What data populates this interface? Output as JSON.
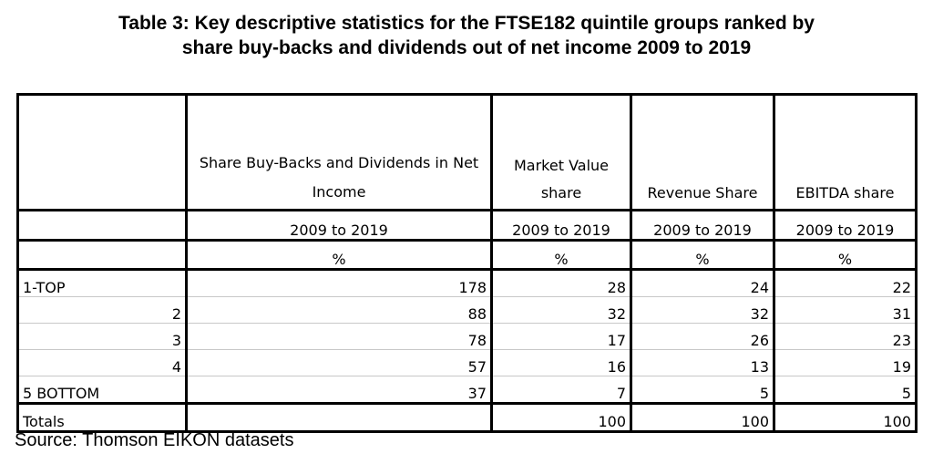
{
  "title": {
    "line1": "Table 3: Key descriptive statistics for the FTSE182 quintile groups ranked by",
    "line2": "share buy-backs and dividends out of net income 2009 to 2019"
  },
  "table": {
    "headers": {
      "col1": "Share Buy-Backs and Dividends in Net Income",
      "col2": "Market Value share",
      "col3": "Revenue Share",
      "col4": "EBITDA share"
    },
    "periods": [
      "2009 to 2019",
      "2009 to 2019",
      "2009 to 2019",
      "2009 to 2019"
    ],
    "units": [
      "%",
      "%",
      "%",
      "%"
    ],
    "rows": [
      {
        "label": "1-TOP",
        "align": "left",
        "buyback_dividends": "178",
        "market_value": "28",
        "revenue": "24",
        "ebitda": "22"
      },
      {
        "label": "2",
        "align": "right",
        "buyback_dividends": "88",
        "market_value": "32",
        "revenue": "32",
        "ebitda": "31"
      },
      {
        "label": "3",
        "align": "right",
        "buyback_dividends": "78",
        "market_value": "17",
        "revenue": "26",
        "ebitda": "23"
      },
      {
        "label": "4",
        "align": "right",
        "buyback_dividends": "57",
        "market_value": "16",
        "revenue": "13",
        "ebitda": "19"
      },
      {
        "label": "5 BOTTOM",
        "align": "left",
        "buyback_dividends": "37",
        "market_value": "7",
        "revenue": "5",
        "ebitda": "5"
      }
    ],
    "totals": {
      "label": "Totals",
      "buyback_dividends": "",
      "market_value": "100",
      "revenue": "100",
      "ebitda": "100"
    }
  },
  "source": "Source: Thomson EIKON datasets"
}
